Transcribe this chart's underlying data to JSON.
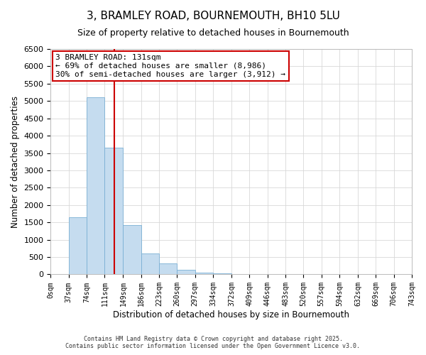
{
  "title": "3, BRAMLEY ROAD, BOURNEMOUTH, BH10 5LU",
  "subtitle": "Size of property relative to detached houses in Bournemouth",
  "xlabel": "Distribution of detached houses by size in Bournemouth",
  "ylabel": "Number of detached properties",
  "bar_values": [
    0,
    1650,
    5100,
    3650,
    1430,
    610,
    310,
    140,
    55,
    20,
    5,
    0,
    0,
    0,
    0,
    0,
    0,
    0,
    0,
    0
  ],
  "bin_edges": [
    0,
    37,
    74,
    111,
    149,
    186,
    223,
    260,
    297,
    334,
    372,
    409,
    446,
    483,
    520,
    557,
    594,
    632,
    669,
    706,
    743
  ],
  "tick_labels": [
    "0sqm",
    "37sqm",
    "74sqm",
    "111sqm",
    "149sqm",
    "186sqm",
    "223sqm",
    "260sqm",
    "297sqm",
    "334sqm",
    "372sqm",
    "409sqm",
    "446sqm",
    "483sqm",
    "520sqm",
    "557sqm",
    "594sqm",
    "632sqm",
    "669sqm",
    "706sqm",
    "743sqm"
  ],
  "bar_color": "#c5dcef",
  "bar_edge_color": "#7aafd4",
  "vline_x": 131,
  "vline_color": "#cc0000",
  "ylim": [
    0,
    6500
  ],
  "yticks": [
    0,
    500,
    1000,
    1500,
    2000,
    2500,
    3000,
    3500,
    4000,
    4500,
    5000,
    5500,
    6000,
    6500
  ],
  "annotation_line1": "3 BRAMLEY ROAD: 131sqm",
  "annotation_line2": "← 69% of detached houses are smaller (8,986)",
  "annotation_line3": "30% of semi-detached houses are larger (3,912) →",
  "annotation_box_color": "#ffffff",
  "annotation_box_edge": "#cc0000",
  "footer1": "Contains HM Land Registry data © Crown copyright and database right 2025.",
  "footer2": "Contains public sector information licensed under the Open Government Licence v3.0.",
  "grid_color": "#d8d8d8",
  "background_color": "#ffffff"
}
